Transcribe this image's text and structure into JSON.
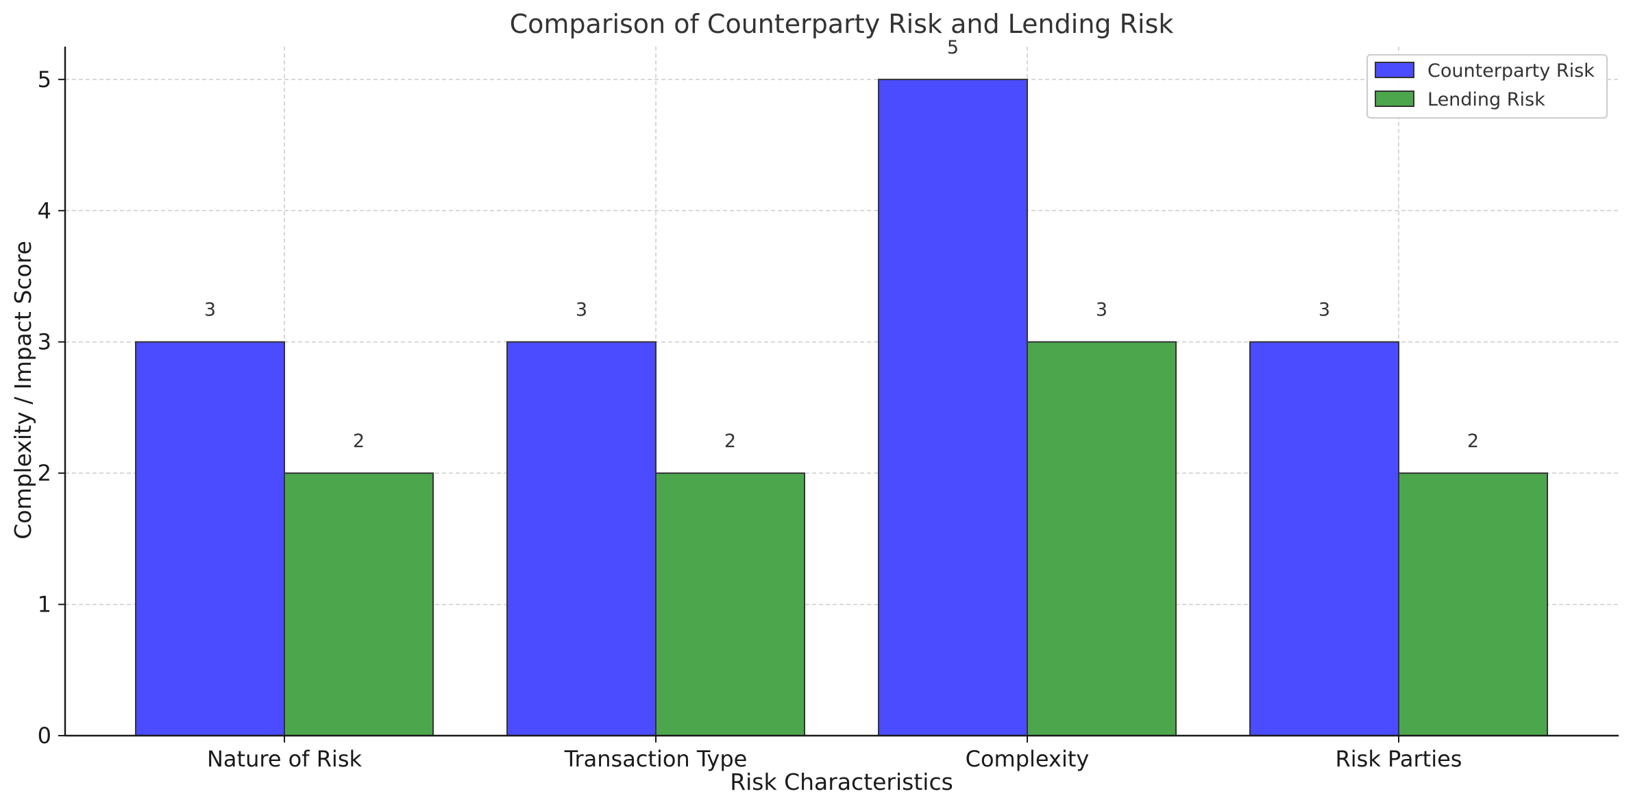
{
  "chart_data": {
    "type": "bar",
    "title": "Comparison of Counterparty Risk and Lending Risk",
    "xlabel": "Risk Characteristics",
    "ylabel": "Complexity / Impact Score",
    "categories": [
      "Nature of Risk",
      "Transaction Type",
      "Complexity",
      "Risk Parties"
    ],
    "series": [
      {
        "name": "Counterparty Risk",
        "values": [
          3,
          3,
          5,
          3
        ],
        "color": "#4b4bff"
      },
      {
        "name": "Lending Risk",
        "values": [
          2,
          2,
          3,
          2
        ],
        "color": "#4ca64c"
      }
    ],
    "ylim": [
      0,
      5.25
    ],
    "yticks": [
      0,
      1,
      2,
      3,
      4,
      5
    ],
    "grid": true,
    "legend": "top-right",
    "data_labels": true
  }
}
